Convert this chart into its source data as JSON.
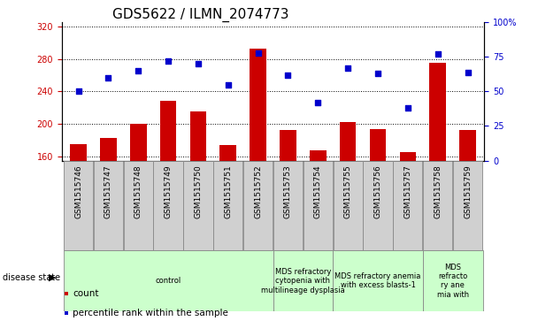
{
  "title": "GDS5622 / ILMN_2074773",
  "samples": [
    "GSM1515746",
    "GSM1515747",
    "GSM1515748",
    "GSM1515749",
    "GSM1515750",
    "GSM1515751",
    "GSM1515752",
    "GSM1515753",
    "GSM1515754",
    "GSM1515755",
    "GSM1515756",
    "GSM1515757",
    "GSM1515758",
    "GSM1515759"
  ],
  "counts": [
    175,
    183,
    200,
    228,
    215,
    174,
    293,
    193,
    168,
    202,
    194,
    165,
    275,
    193
  ],
  "percentile_ranks": [
    50,
    60,
    65,
    72,
    70,
    55,
    78,
    62,
    42,
    67,
    63,
    38,
    77,
    64
  ],
  "ylim_left": [
    155,
    325
  ],
  "ylim_right": [
    0,
    100
  ],
  "yticks_left": [
    160,
    200,
    240,
    280,
    320
  ],
  "yticks_right": [
    0,
    25,
    50,
    75,
    100
  ],
  "bar_color": "#cc0000",
  "dot_color": "#0000cc",
  "sample_box_color": "#d0d0d0",
  "sample_box_edge": "#888888",
  "disease_states": [
    {
      "label": "control",
      "start": 0,
      "end": 7,
      "color": "#ccffcc"
    },
    {
      "label": "MDS refractory\ncytopenia with\nmultilineage dysplasia",
      "start": 7,
      "end": 9,
      "color": "#ccffcc"
    },
    {
      "label": "MDS refractory anemia\nwith excess blasts-1",
      "start": 9,
      "end": 12,
      "color": "#ccffcc"
    },
    {
      "label": "MDS\nrefracto\nry ane\nmia with",
      "start": 12,
      "end": 14,
      "color": "#ccffcc"
    }
  ],
  "tick_fontsize": 7,
  "sample_fontsize": 6.5,
  "title_fontsize": 11,
  "legend_fontsize": 7.5,
  "disease_fontsize": 6,
  "disease_label_fontsize": 7
}
